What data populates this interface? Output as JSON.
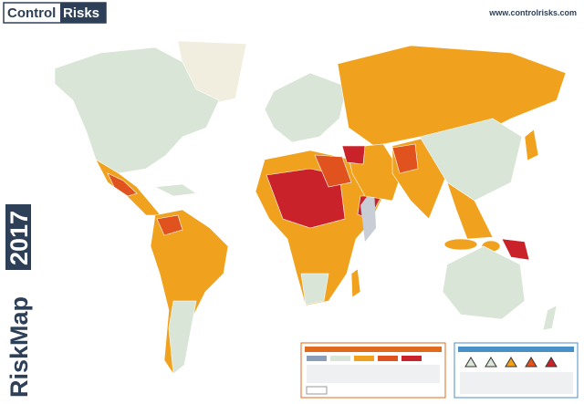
{
  "header": {
    "logo_left": "Control",
    "logo_right": "Risks",
    "url": "www.controlrisks.com"
  },
  "title": {
    "word": "RiskMap",
    "year": "2017"
  }
}
